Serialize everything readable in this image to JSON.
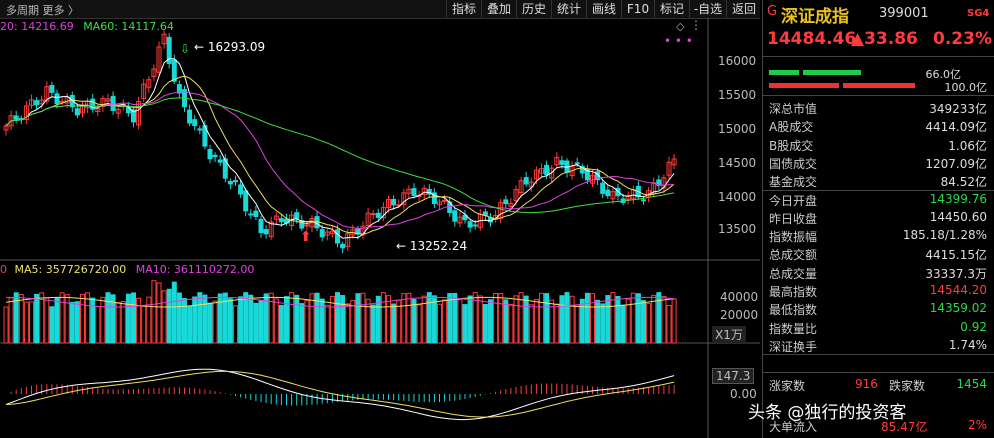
{
  "toolbar": {
    "left_text": "多周期  更多 〉",
    "buttons": [
      "指标",
      "叠加",
      "历史",
      "统计",
      "画线",
      "F10",
      "标记",
      "-自选",
      "返回"
    ]
  },
  "ma_main": {
    "ma20": "20: 14216.69",
    "ma60": "MA60: 14117.64"
  },
  "annotations": {
    "high": "16293.09",
    "low": "13252.24"
  },
  "price_axis": [
    "16000",
    "15500",
    "15000",
    "14500",
    "14000",
    "13500"
  ],
  "volume_legend": {
    "v": "0",
    "ma5": "MA5: 357726720.00",
    "ma10": "MA10: 361110272.00"
  },
  "volume_axis": [
    "40000",
    "20000"
  ],
  "volume_unit": "X1万",
  "indicator_axis": [
    "147.3",
    "0.00"
  ],
  "panel": {
    "g_label": "G",
    "name": "深证成指",
    "code": "399001",
    "sg": "SG4",
    "price": "14484.46",
    "change": "▲33.86",
    "pct": "0.23%",
    "bar1_label": "66.0亿",
    "bar2_label": "100.0亿",
    "rows": [
      {
        "label": "深总市值",
        "value": "349233亿",
        "color": "white"
      },
      {
        "label": "A股成交",
        "value": "4414.09亿",
        "color": "white"
      },
      {
        "label": "B股成交",
        "value": "1.06亿",
        "color": "white"
      },
      {
        "label": "国债成交",
        "value": "1207.09亿",
        "color": "white"
      },
      {
        "label": "基金成交",
        "value": "84.52亿",
        "color": "white"
      },
      {
        "label": "今日开盘",
        "value": "14399.76",
        "color": "green"
      },
      {
        "label": "昨日收盘",
        "value": "14450.60",
        "color": "white"
      },
      {
        "label": "指数振幅",
        "value": "185.18/1.28%",
        "color": "white"
      },
      {
        "label": "总成交额",
        "value": "4415.15亿",
        "color": "white"
      },
      {
        "label": "总成交量",
        "value": "33337.3万",
        "color": "white"
      },
      {
        "label": "最高指数",
        "value": "14544.20",
        "color": "red"
      },
      {
        "label": "最低指数",
        "value": "14359.02",
        "color": "green"
      },
      {
        "label": "指数量比",
        "value": "0.92",
        "color": "green"
      },
      {
        "label": "深证换手",
        "value": "1.74%",
        "color": "white"
      }
    ],
    "up_label": "涨家数",
    "up_value": "916",
    "down_label": "跌家数",
    "down_value": "1454",
    "big_flow_label": "大单流入",
    "big_flow_value": "85.47亿",
    "big_flow_pct": "2%"
  },
  "watermark": "头条 @独行的投资客",
  "colors": {
    "up": "#ff3b3b",
    "down": "#18d8d8",
    "ma5": "#ffffff",
    "ma10": "#f0e060",
    "ma20": "#e040e0",
    "ma60": "#40e040"
  }
}
